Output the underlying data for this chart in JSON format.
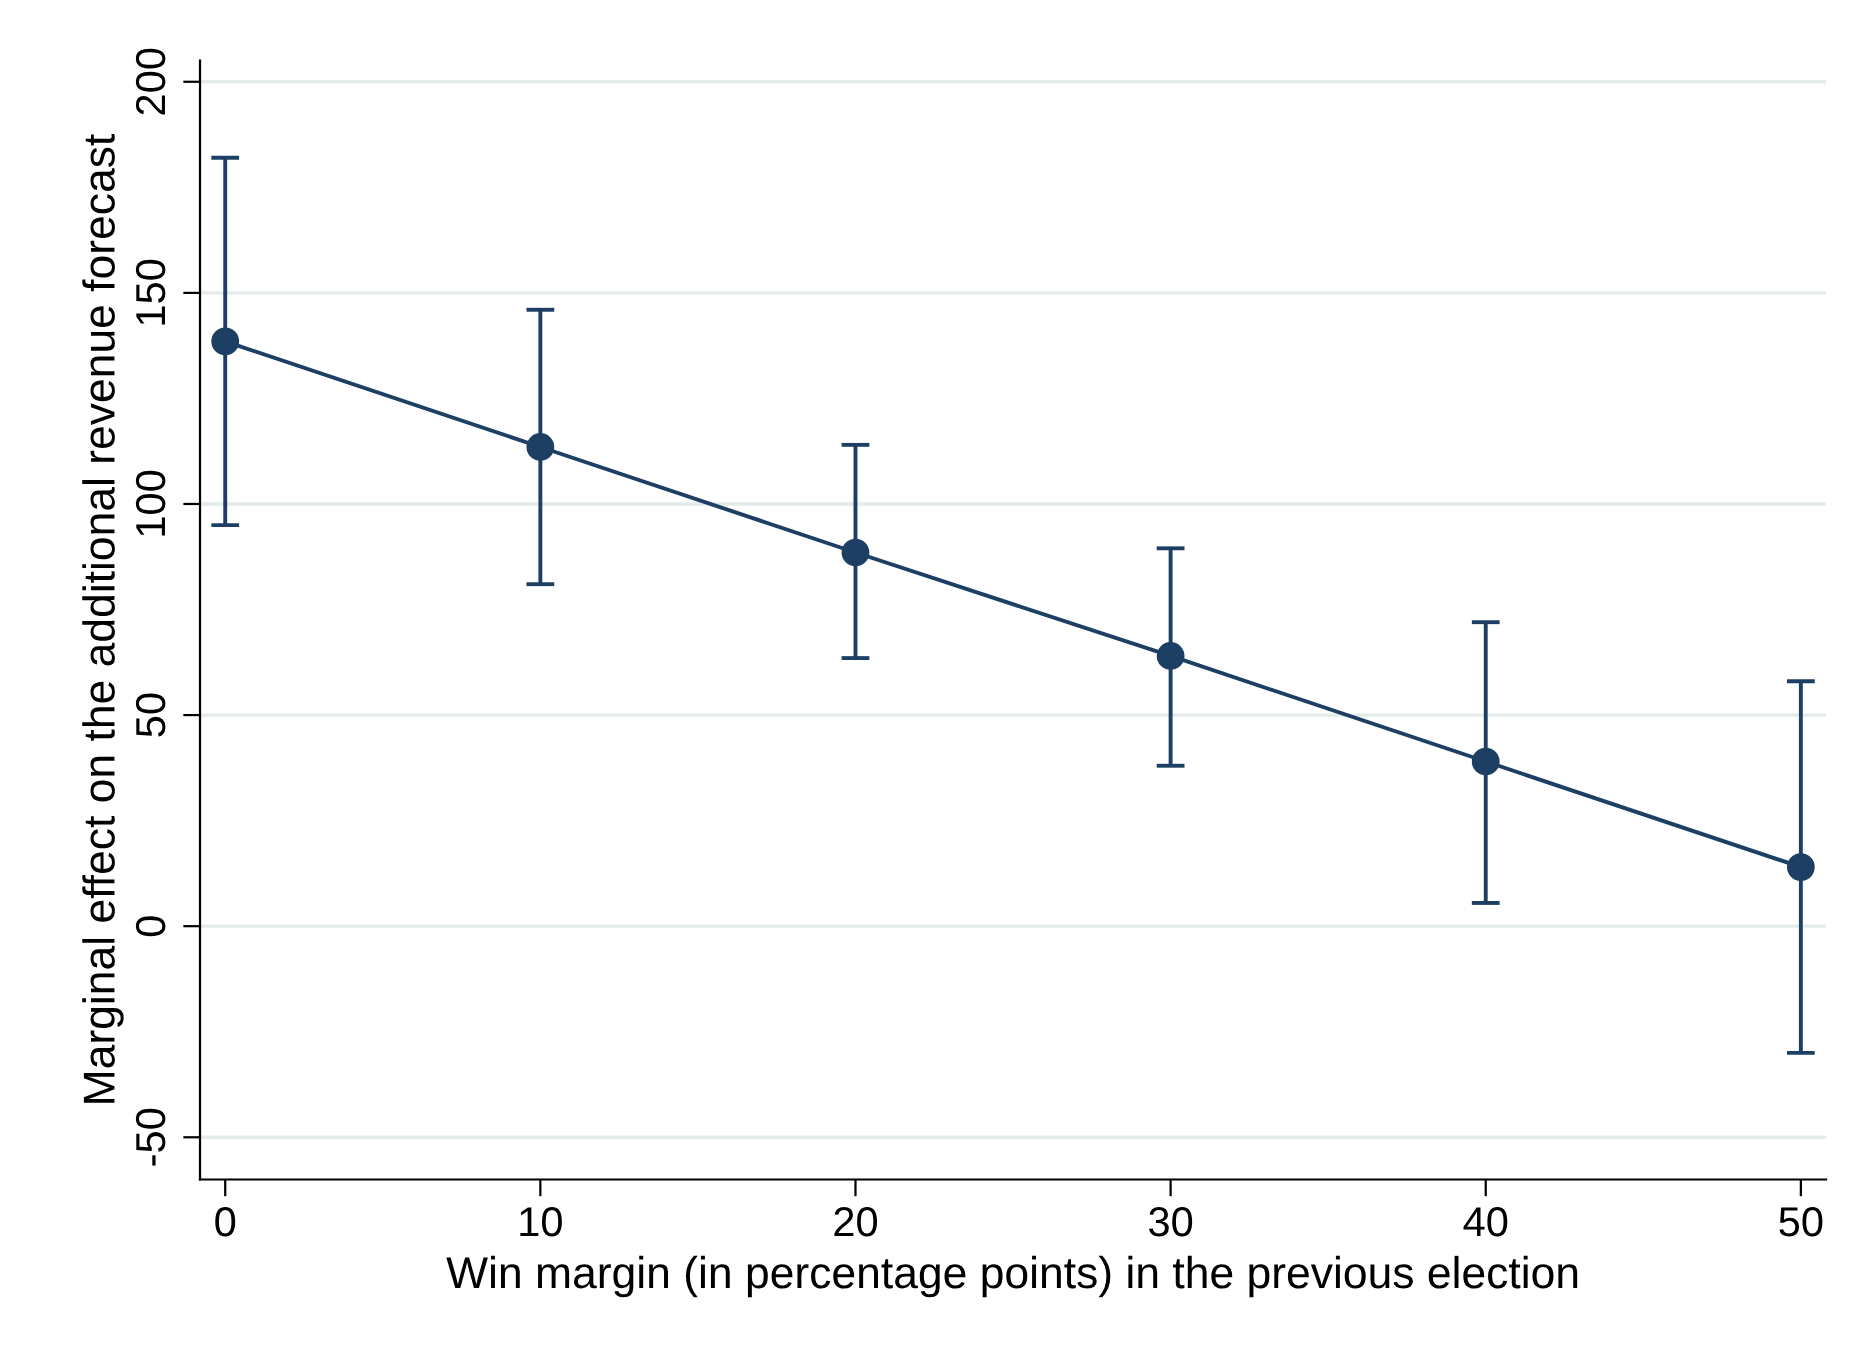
{
  "chart_data": {
    "type": "line",
    "xlabel": "Win margin (in percentage points) in the previous election",
    "ylabel": "Marginal effect on the additional revenue forecast",
    "x": [
      0,
      10,
      20,
      30,
      40,
      50
    ],
    "series": [
      {
        "color": "#1c3f63",
        "values": [
          138.5,
          113.5,
          88.5,
          64,
          39,
          14
        ],
        "errors": [
          [
            95,
            182
          ],
          [
            81,
            146
          ],
          [
            63.5,
            114
          ],
          [
            38,
            89.5
          ],
          [
            5.5,
            72
          ],
          [
            -30,
            58
          ]
        ]
      }
    ],
    "xlim": [
      -0.8,
      50.8
    ],
    "xticks": [
      0,
      10,
      20,
      30,
      40,
      50
    ],
    "ylim": [
      -60,
      205
    ],
    "yticks": [
      -50,
      0,
      50,
      100,
      150,
      200
    ],
    "grid": "y",
    "marker": "circle",
    "line_style": "solid"
  }
}
